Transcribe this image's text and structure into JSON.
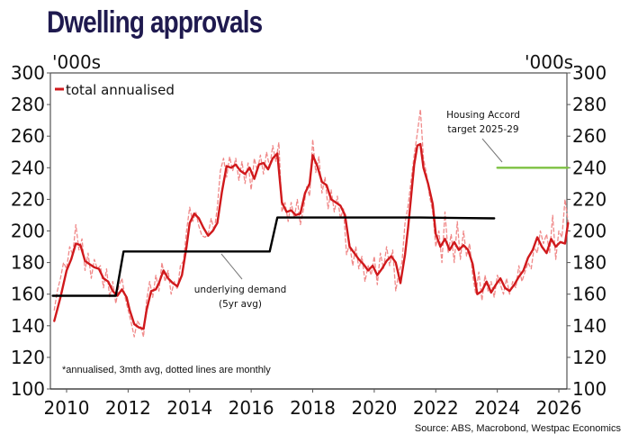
{
  "title": "Dwelling approvals",
  "chart_data": {
    "type": "line",
    "title": "Dwelling approvals",
    "ylabel_left": "'000s",
    "ylabel_right": "'000s",
    "xlabel": "",
    "ylim": [
      100,
      300
    ],
    "xlim": [
      2009.5,
      2026.6
    ],
    "yticks": [
      100,
      120,
      140,
      160,
      180,
      200,
      220,
      240,
      260,
      280,
      300
    ],
    "xticks": [
      2010,
      2012,
      2014,
      2016,
      2018,
      2020,
      2022,
      2024,
      2026
    ],
    "grid": false,
    "legend": {
      "position": "top-left",
      "entries": [
        "total annualised"
      ]
    },
    "series": [
      {
        "name": "total annualised",
        "style": "solid",
        "color": "#d0191c",
        "x": [
          2009.6,
          2009.8,
          2010.0,
          2010.15,
          2010.3,
          2010.45,
          2010.6,
          2010.75,
          2010.9,
          2011.05,
          2011.2,
          2011.35,
          2011.5,
          2011.65,
          2011.8,
          2011.95,
          2012.05,
          2012.2,
          2012.35,
          2012.5,
          2012.6,
          2012.75,
          2012.9,
          2013.0,
          2013.15,
          2013.3,
          2013.45,
          2013.6,
          2013.75,
          2013.9,
          2014.0,
          2014.15,
          2014.3,
          2014.45,
          2014.6,
          2014.75,
          2014.9,
          2015.05,
          2015.2,
          2015.35,
          2015.5,
          2015.65,
          2015.8,
          2015.95,
          2016.1,
          2016.25,
          2016.4,
          2016.55,
          2016.7,
          2016.85,
          2017.0,
          2017.15,
          2017.3,
          2017.45,
          2017.6,
          2017.75,
          2017.9,
          2018.0,
          2018.15,
          2018.3,
          2018.45,
          2018.6,
          2018.75,
          2018.9,
          2019.05,
          2019.2,
          2019.35,
          2019.5,
          2019.65,
          2019.8,
          2019.95,
          2020.1,
          2020.25,
          2020.4,
          2020.55,
          2020.7,
          2020.85,
          2021.0,
          2021.1,
          2021.2,
          2021.3,
          2021.4,
          2021.5,
          2021.6,
          2021.75,
          2021.9,
          2022.0,
          2022.15,
          2022.3,
          2022.45,
          2022.6,
          2022.75,
          2022.9,
          2023.05,
          2023.2,
          2023.35,
          2023.5,
          2023.65,
          2023.8,
          2023.95,
          2024.1,
          2024.25,
          2024.4,
          2024.55,
          2024.7,
          2024.85,
          2025.0,
          2025.15,
          2025.3,
          2025.45,
          2025.6,
          2025.75,
          2025.9,
          2026.05,
          2026.2,
          2026.3
        ],
        "values": [
          143,
          158,
          175,
          182,
          192,
          191,
          181,
          179,
          177,
          176,
          170,
          168,
          162,
          159,
          163,
          158,
          150,
          141,
          139,
          138,
          150,
          162,
          163,
          167,
          175,
          170,
          167,
          165,
          172,
          190,
          205,
          211,
          208,
          202,
          197,
          200,
          205,
          225,
          241,
          240,
          242,
          238,
          236,
          240,
          233,
          242,
          243,
          239,
          246,
          249,
          218,
          212,
          213,
          210,
          211,
          224,
          230,
          248,
          241,
          231,
          229,
          220,
          218,
          216,
          210,
          190,
          186,
          182,
          179,
          175,
          178,
          172,
          176,
          181,
          184,
          180,
          167,
          185,
          202,
          222,
          242,
          254,
          255,
          240,
          230,
          217,
          198,
          190,
          195,
          188,
          193,
          188,
          191,
          188,
          179,
          160,
          162,
          168,
          161,
          166,
          170,
          164,
          162,
          166,
          171,
          175,
          183,
          188,
          196,
          190,
          186,
          195,
          190,
          193,
          192,
          205
        ]
      },
      {
        "name": "monthly (dotted)",
        "style": "dashed",
        "color": "#f08a8a",
        "x": [
          2009.6,
          2009.7,
          2009.8,
          2009.9,
          2010.0,
          2010.1,
          2010.2,
          2010.3,
          2010.4,
          2010.5,
          2010.6,
          2010.7,
          2010.8,
          2010.9,
          2011.0,
          2011.1,
          2011.2,
          2011.3,
          2011.4,
          2011.5,
          2011.6,
          2011.7,
          2011.8,
          2011.9,
          2012.0,
          2012.1,
          2012.2,
          2012.3,
          2012.4,
          2012.5,
          2012.6,
          2012.7,
          2012.8,
          2012.9,
          2013.0,
          2013.1,
          2013.2,
          2013.3,
          2013.4,
          2013.5,
          2013.6,
          2013.7,
          2013.8,
          2013.9,
          2014.0,
          2014.1,
          2014.2,
          2014.3,
          2014.4,
          2014.5,
          2014.6,
          2014.7,
          2014.8,
          2014.9,
          2015.0,
          2015.1,
          2015.2,
          2015.3,
          2015.4,
          2015.5,
          2015.6,
          2015.7,
          2015.8,
          2015.9,
          2016.0,
          2016.1,
          2016.2,
          2016.3,
          2016.4,
          2016.5,
          2016.6,
          2016.7,
          2016.8,
          2016.9,
          2017.0,
          2017.1,
          2017.2,
          2017.3,
          2017.4,
          2017.5,
          2017.6,
          2017.7,
          2017.8,
          2017.9,
          2018.0,
          2018.1,
          2018.2,
          2018.3,
          2018.4,
          2018.5,
          2018.6,
          2018.7,
          2018.8,
          2018.9,
          2019.0,
          2019.1,
          2019.2,
          2019.3,
          2019.4,
          2019.5,
          2019.6,
          2019.7,
          2019.8,
          2019.9,
          2020.0,
          2020.1,
          2020.2,
          2020.3,
          2020.4,
          2020.5,
          2020.6,
          2020.7,
          2020.8,
          2020.9,
          2021.0,
          2021.1,
          2021.2,
          2021.3,
          2021.4,
          2021.5,
          2021.6,
          2021.7,
          2021.8,
          2021.9,
          2022.0,
          2022.1,
          2022.2,
          2022.3,
          2022.4,
          2022.5,
          2022.6,
          2022.7,
          2022.8,
          2022.9,
          2023.0,
          2023.1,
          2023.2,
          2023.3,
          2023.4,
          2023.5,
          2023.6,
          2023.7,
          2023.8,
          2023.9,
          2024.0,
          2024.1,
          2024.2,
          2024.3,
          2024.4,
          2024.5,
          2024.6,
          2024.7,
          2024.8,
          2024.9,
          2025.0,
          2025.1,
          2025.2,
          2025.3,
          2025.4,
          2025.5,
          2025.6,
          2025.7,
          2025.8,
          2025.9,
          2026.0,
          2026.1,
          2026.2,
          2026.3
        ],
        "values": [
          150,
          162,
          170,
          180,
          176,
          190,
          185,
          204,
          188,
          195,
          175,
          186,
          170,
          182,
          176,
          178,
          164,
          176,
          158,
          168,
          154,
          165,
          170,
          158,
          150,
          142,
          133,
          143,
          140,
          133,
          156,
          168,
          158,
          172,
          162,
          180,
          168,
          175,
          160,
          168,
          163,
          178,
          181,
          200,
          215,
          206,
          212,
          203,
          197,
          196,
          198,
          208,
          200,
          215,
          238,
          246,
          234,
          247,
          238,
          246,
          232,
          244,
          230,
          243,
          226,
          246,
          238,
          248,
          236,
          250,
          240,
          254,
          244,
          256,
          212,
          218,
          206,
          218,
          208,
          220,
          204,
          214,
          228,
          222,
          258,
          237,
          247,
          224,
          234,
          214,
          226,
          212,
          222,
          208,
          214,
          185,
          192,
          178,
          190,
          176,
          184,
          168,
          178,
          172,
          184,
          166,
          186,
          176,
          190,
          178,
          188,
          162,
          174,
          180,
          205,
          216,
          232,
          248,
          262,
          277,
          246,
          236,
          222,
          212,
          190,
          200,
          180,
          212,
          186,
          198,
          180,
          206,
          182,
          200,
          184,
          192,
          172,
          160,
          174,
          156,
          172,
          162,
          168,
          158,
          172,
          166,
          160,
          170,
          160,
          168,
          164,
          178,
          168,
          174,
          180,
          176,
          190,
          186,
          200,
          192,
          198,
          186,
          210,
          182,
          200,
          196,
          220,
          206
        ]
      },
      {
        "name": "underlying demand (5yr avg)",
        "style": "solid",
        "color": "#000000",
        "x": [
          2009.55,
          2011.6,
          2011.85,
          2016.6,
          2016.85,
          2021.5,
          2023.9
        ],
        "values": [
          159,
          159,
          187,
          187,
          208.5,
          208.5,
          208
        ]
      },
      {
        "name": "Housing Accord target 2025-29",
        "style": "solid",
        "color": "#7dc142",
        "x": [
          2024.0,
          2026.3
        ],
        "values": [
          240,
          240
        ]
      }
    ],
    "annotations": [
      {
        "text_lines": [
          "Housing Accord",
          "target 2025-29"
        ],
        "points_to": "Housing Accord target line",
        "at": [
          2024.0,
          240
        ]
      },
      {
        "text_lines": [
          "underlying demand",
          "(5yr avg)"
        ],
        "points_to": "underlying demand line",
        "at": [
          2015.0,
          187
        ]
      }
    ],
    "footnote": "*annualised, 3mth avg, dotted lines are monthly",
    "source": "Source: ABS, Macrobond, Westpac Economics"
  }
}
